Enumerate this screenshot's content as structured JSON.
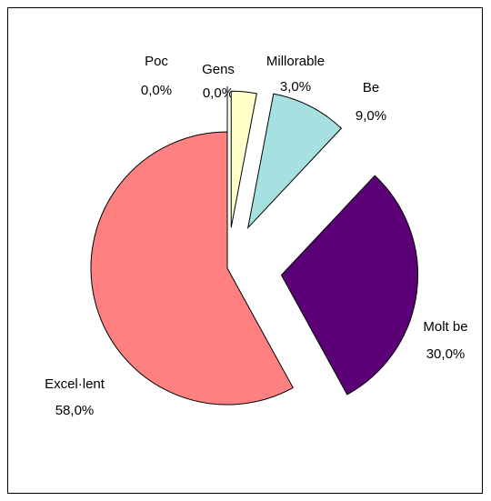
{
  "chart_data": {
    "type": "pie",
    "categories": [
      "Poc",
      "Gens",
      "Millorable",
      "Be",
      "Molt be",
      "Excel·lent"
    ],
    "values": [
      0,
      0,
      3,
      9,
      30,
      58
    ],
    "value_labels": [
      "0,0%",
      "0,0%",
      "3,0%",
      "9,0%",
      "30,0%",
      "58,0%"
    ],
    "colors": [
      "#9999ff",
      "#993366",
      "#ffffc8",
      "#a6e0e0",
      "#5c0078",
      "#ff8080"
    ]
  }
}
